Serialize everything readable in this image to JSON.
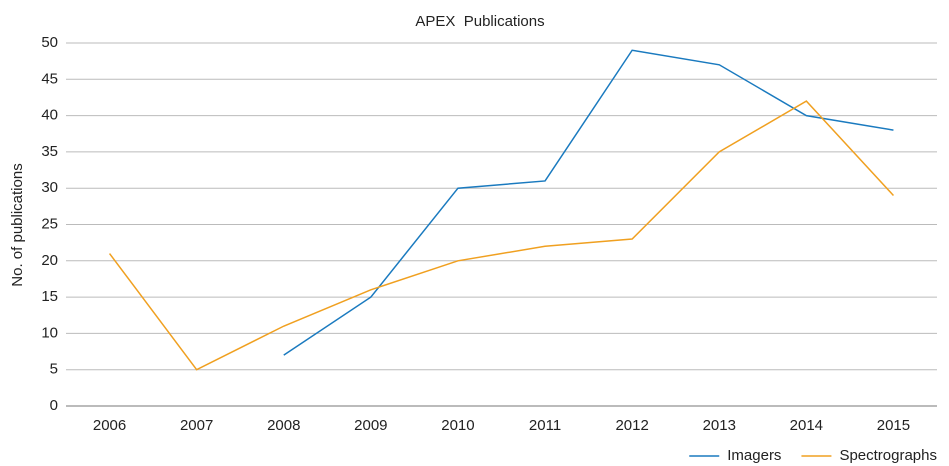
{
  "chart_data": {
    "type": "line",
    "title": "APEX  Publications",
    "y_label": "No. of publications",
    "categories": [
      "2006",
      "2007",
      "2008",
      "2009",
      "2010",
      "2011",
      "2012",
      "2013",
      "2014",
      "2015"
    ],
    "series": [
      {
        "name": "Imagers",
        "color": "#1a7abf",
        "values": [
          null,
          null,
          7,
          15,
          30,
          31,
          49,
          47,
          40,
          38
        ]
      },
      {
        "name": "Spectrographs",
        "color": "#f0a020",
        "values": [
          21,
          5,
          11,
          16,
          20,
          22,
          23,
          35,
          42,
          29
        ]
      }
    ],
    "ylim": [
      0,
      50
    ],
    "yticks": [
      0,
      5,
      10,
      15,
      20,
      25,
      30,
      35,
      40,
      45,
      50
    ],
    "grid": true,
    "legend": "bottom-right"
  }
}
